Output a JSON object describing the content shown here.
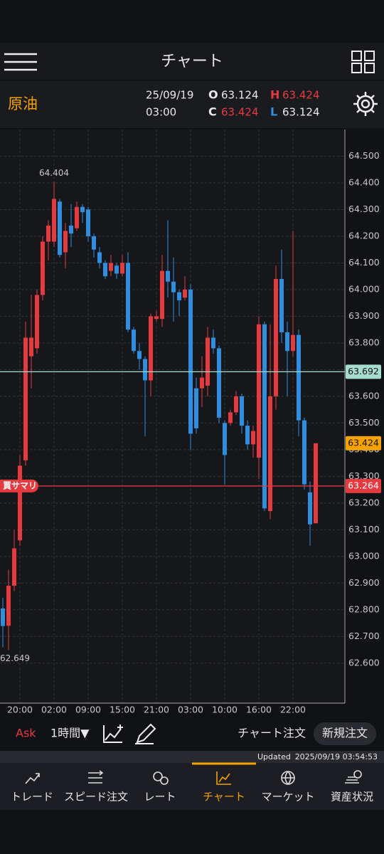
{
  "header": {
    "title": "チャート"
  },
  "info": {
    "symbol": "原油",
    "date": "25/09/19",
    "time": "03:00",
    "open_label": "O",
    "open": "63.124",
    "high_label": "H",
    "high": "63.424",
    "close_label": "C",
    "close": "63.424",
    "low_label": "L",
    "low": "63.124"
  },
  "chart_data": {
    "type": "candlestick",
    "categories": [
      null,
      null,
      null,
      "20:00",
      null,
      null,
      null,
      null,
      null,
      "02:00",
      null,
      null,
      null,
      null,
      null,
      "09:00",
      null,
      null,
      null,
      null,
      null,
      "15:00",
      null,
      null,
      null,
      null,
      null,
      "21:00",
      null,
      null,
      null,
      null,
      null,
      "03:00",
      null,
      null,
      null,
      null,
      null,
      "10:00",
      null,
      null,
      null,
      null,
      null,
      "16:00",
      null,
      null,
      null,
      null,
      null,
      "22:00",
      null,
      null,
      null,
      null
    ],
    "open": [
      62.805,
      62.74,
      62.89,
      63.06,
      63.36,
      63.75,
      63.78,
      63.98,
      64.18,
      64.18,
      64.33,
      64.14,
      64.24,
      64.23,
      64.31,
      64.3,
      64.2,
      64.14,
      64.1,
      64.07,
      64.09,
      64.06,
      64.1,
      63.85,
      63.77,
      63.74,
      63.66,
      63.89,
      63.89,
      64.07,
      64.03,
      63.99,
      63.97,
      64.0,
      63.63,
      63.63,
      63.64,
      63.82,
      63.78,
      63.5,
      63.5,
      63.54,
      63.6,
      63.49,
      63.42,
      63.37,
      63.87,
      63.17,
      63.6,
      64.04,
      63.84,
      63.77,
      63.83,
      63.51,
      63.24,
      63.124
    ],
    "high": [
      62.845,
      62.95,
      63.1,
      63.38,
      63.88,
      63.98,
      64.0,
      64.2,
      64.26,
      64.404,
      64.34,
      64.25,
      64.32,
      64.33,
      64.32,
      64.31,
      64.21,
      64.16,
      64.11,
      64.13,
      64.1,
      64.13,
      64.14,
      63.86,
      63.8,
      63.75,
      63.91,
      63.92,
      64.13,
      64.26,
      64.12,
      64.0,
      64.05,
      64.02,
      63.67,
      63.75,
      63.86,
      63.85,
      63.79,
      63.51,
      63.55,
      63.62,
      63.61,
      63.51,
      63.49,
      63.9,
      63.88,
      63.87,
      64.09,
      64.15,
      63.88,
      64.22,
      63.85,
      63.52,
      63.28,
      63.424
    ],
    "low": [
      62.659,
      62.649,
      62.87,
      63.04,
      63.34,
      63.63,
      63.76,
      63.96,
      64.11,
      64.16,
      64.12,
      64.08,
      64.16,
      64.22,
      64.25,
      64.18,
      64.12,
      64.08,
      64.04,
      64.05,
      64.04,
      64.05,
      63.84,
      63.76,
      63.7,
      63.45,
      63.6,
      63.88,
      63.86,
      63.97,
      63.88,
      63.9,
      63.96,
      63.4,
      63.46,
      63.56,
      63.6,
      63.76,
      63.5,
      63.27,
      63.49,
      63.53,
      63.46,
      63.4,
      63.37,
      63.29,
      63.17,
      63.14,
      63.55,
      63.8,
      63.6,
      63.75,
      63.45,
      63.25,
      63.04,
      63.124
    ],
    "close": [
      62.739,
      62.89,
      63.03,
      63.34,
      63.82,
      63.82,
      63.98,
      64.18,
      64.24,
      64.34,
      64.13,
      64.22,
      64.21,
      64.31,
      64.29,
      64.2,
      64.15,
      64.1,
      64.05,
      64.1,
      64.06,
      64.1,
      63.85,
      63.77,
      63.74,
      63.66,
      63.9,
      63.9,
      64.07,
      64.03,
      63.99,
      63.96,
      64.0,
      63.46,
      63.48,
      63.67,
      63.82,
      63.78,
      63.52,
      63.38,
      63.54,
      63.6,
      63.49,
      63.42,
      63.47,
      63.87,
      63.18,
      63.6,
      64.04,
      63.84,
      63.77,
      63.83,
      63.51,
      63.27,
      63.12,
      63.424
    ],
    "up_color": "#e53b40",
    "down_color": "#2e8ee0",
    "high_label": "64.404",
    "low_label": "62.649",
    "ylim": [
      62.45,
      64.6
    ],
    "yticks": [
      {
        "value": 62.6,
        "label": "62.600"
      },
      {
        "value": 62.7,
        "label": "62.700"
      },
      {
        "value": 62.8,
        "label": "62.800"
      },
      {
        "value": 62.9,
        "label": "62.900"
      },
      {
        "value": 63.0,
        "label": "63.000"
      },
      {
        "value": 63.1,
        "label": "63.100"
      },
      {
        "value": 63.2,
        "label": "63.200"
      },
      {
        "value": 63.3,
        "label": "63.300"
      },
      {
        "value": 63.4,
        "label": "63.400"
      },
      {
        "value": 63.5,
        "label": "63.500"
      },
      {
        "value": 63.6,
        "label": "63.600"
      },
      {
        "value": 63.7,
        "label": "63.700"
      },
      {
        "value": 63.8,
        "label": "63.800"
      },
      {
        "value": 63.9,
        "label": "63.900"
      },
      {
        "value": 64.0,
        "label": "64.000"
      },
      {
        "value": 64.1,
        "label": "64.100"
      },
      {
        "value": 64.2,
        "label": "64.200"
      },
      {
        "value": 64.3,
        "label": "64.300"
      },
      {
        "value": 64.4,
        "label": "64.400"
      },
      {
        "value": 64.5,
        "label": "64.500"
      }
    ],
    "grid": true,
    "levels": [
      {
        "value": 63.692,
        "label": "63.692",
        "color": "#a6dccd",
        "text_color": "#111111",
        "line": true
      },
      {
        "value": 63.264,
        "label": "63.264",
        "color": "#e53b40",
        "text_color": "#ffffff",
        "line": true,
        "name": "買サマリ"
      },
      {
        "value": 63.424,
        "label": "63.424",
        "color": "#f5a300",
        "text_color": "#111111",
        "line": false
      }
    ]
  },
  "toolbar": {
    "side": "Ask",
    "interval": "1時間▼",
    "chart_order": "チャート注文",
    "new_order": "新規注文"
  },
  "status": {
    "label": "Updated",
    "timestamp": "2025/09/19 03:54:53"
  },
  "nav": [
    "トレード",
    "スピード注文",
    "レート",
    "チャート",
    "マーケット",
    "資産状況"
  ]
}
